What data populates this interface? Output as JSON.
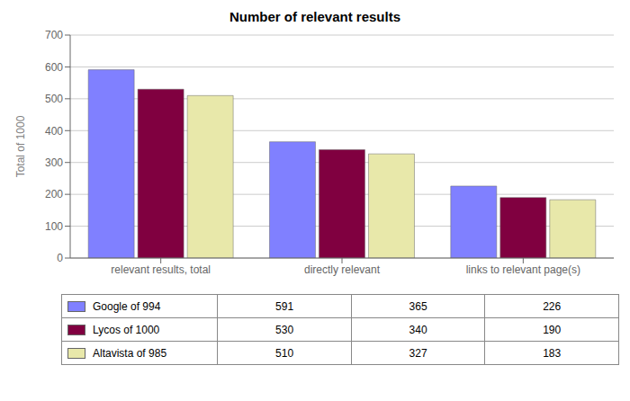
{
  "chart_data": {
    "type": "bar",
    "title": "Number of relevant results",
    "ylabel": "Total of 1000",
    "categories": [
      "relevant results, total",
      "directly relevant",
      "links to relevant page(s)"
    ],
    "series": [
      {
        "name": "Google of 994",
        "color": "#8080ff",
        "values": [
          591,
          365,
          226
        ]
      },
      {
        "name": "Lycos of 1000",
        "color": "#800040",
        "values": [
          530,
          340,
          190
        ]
      },
      {
        "name": "Altavista of 985",
        "color": "#e8e8aa",
        "values": [
          510,
          327,
          183
        ]
      }
    ],
    "ylim": [
      0,
      700
    ],
    "yticks": [
      0,
      100,
      200,
      300,
      400,
      500,
      600,
      700
    ],
    "grid": true,
    "legend": "bottom"
  }
}
